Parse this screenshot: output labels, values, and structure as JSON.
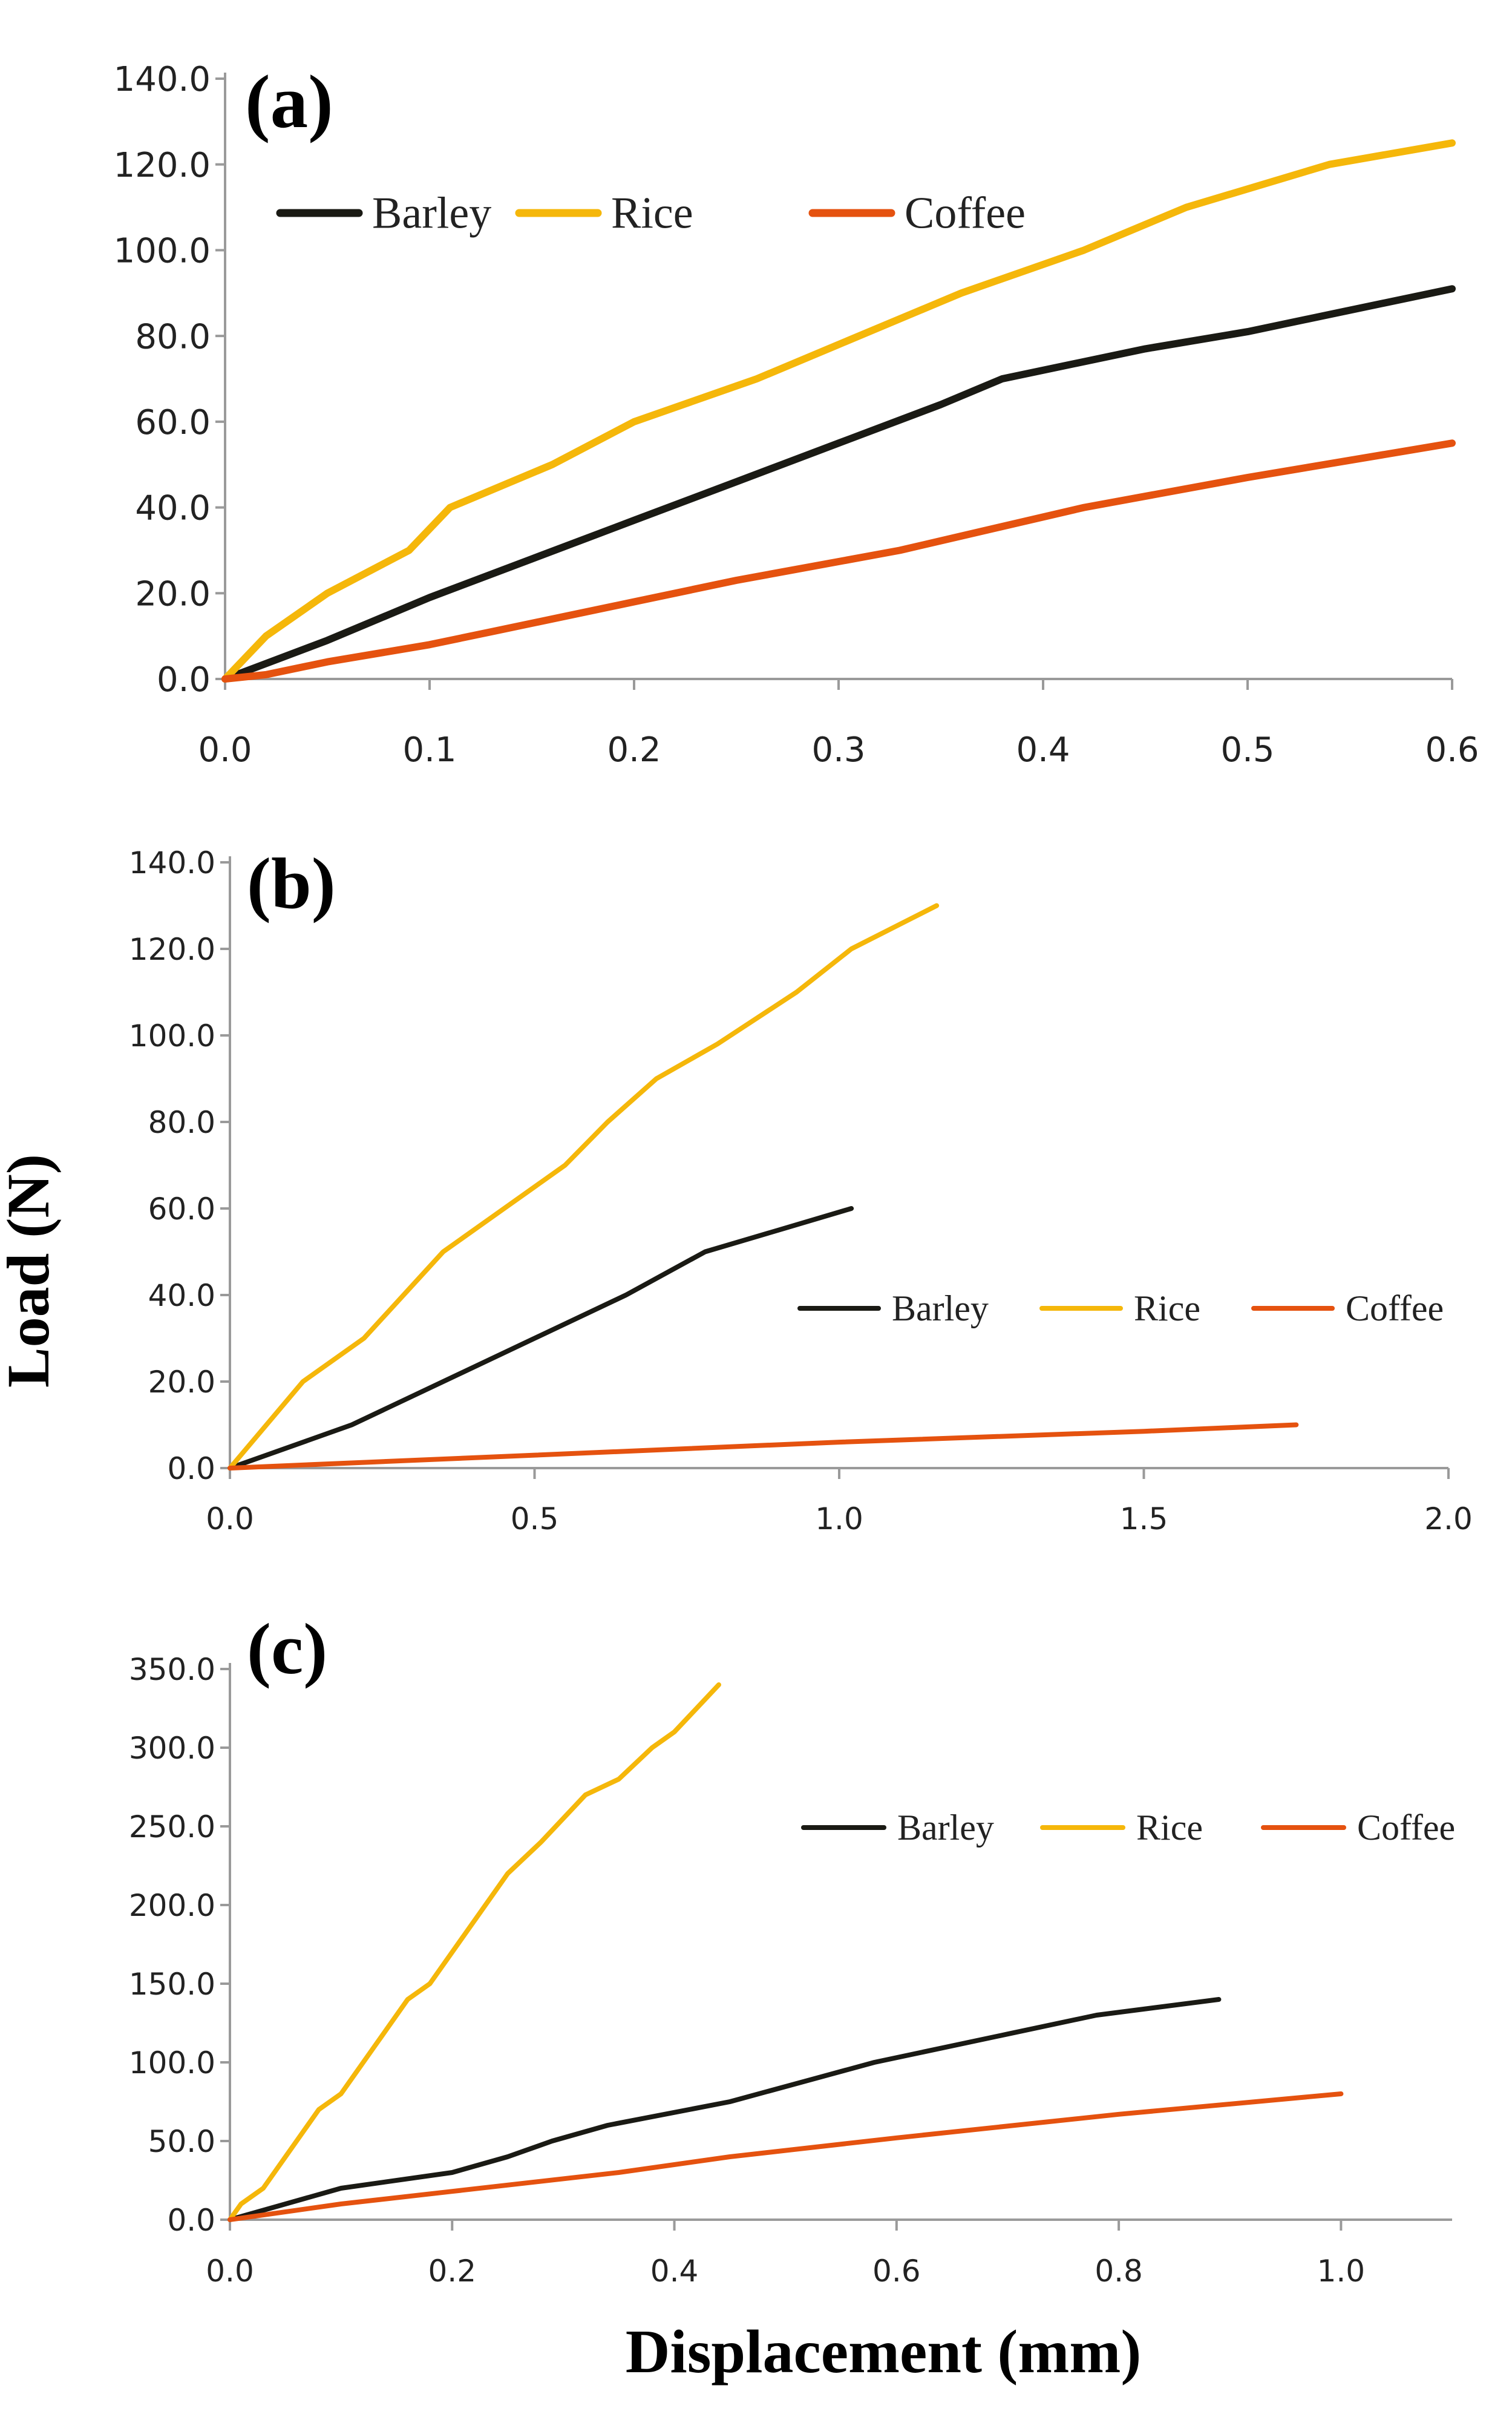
{
  "figure": {
    "ylabel": "Load (N)",
    "xlabel": "Displacement (mm)"
  },
  "colors": {
    "Barley": "#1a1a14",
    "Rice": "#f5b70a",
    "Coffee": "#e5520f"
  },
  "chart_data": [
    {
      "type": "line",
      "panel": "(a)",
      "xlim": [
        0,
        0.6
      ],
      "ylim": [
        0,
        140
      ],
      "x_ticks": [
        0,
        0.1,
        0.2,
        0.3,
        0.4,
        0.5,
        0.6
      ],
      "x_tick_labels": [
        "0.0",
        "0.1",
        "0.2",
        "0.3",
        "0.4",
        "0.5",
        "0.6"
      ],
      "y_ticks": [
        0,
        20,
        40,
        60,
        80,
        100,
        120,
        140
      ],
      "y_tick_labels": [
        "0.0",
        "20.0",
        "40.0",
        "60.0",
        "80.0",
        "100.0",
        "120.0",
        "140.0"
      ],
      "legend": "top-left",
      "grid": false,
      "series": [
        {
          "name": "Barley",
          "x": [
            0,
            0.05,
            0.1,
            0.15,
            0.2,
            0.25,
            0.3,
            0.35,
            0.38,
            0.45,
            0.5,
            0.55,
            0.6
          ],
          "y": [
            0,
            9,
            19,
            28,
            37,
            46,
            55,
            64,
            70,
            77,
            81,
            86,
            91
          ]
        },
        {
          "name": "Rice",
          "x": [
            0,
            0.02,
            0.05,
            0.09,
            0.11,
            0.16,
            0.2,
            0.26,
            0.3,
            0.36,
            0.42,
            0.47,
            0.54,
            0.6
          ],
          "y": [
            0,
            10,
            20,
            30,
            40,
            50,
            60,
            70,
            78,
            90,
            100,
            110,
            120,
            125
          ]
        },
        {
          "name": "Coffee",
          "x": [
            0,
            0.02,
            0.05,
            0.1,
            0.13,
            0.2,
            0.25,
            0.33,
            0.42,
            0.5,
            0.6
          ],
          "y": [
            0,
            1,
            4,
            8,
            11,
            18,
            23,
            30,
            40,
            47,
            55
          ]
        }
      ]
    },
    {
      "type": "line",
      "panel": "(b)",
      "xlim": [
        0,
        2.0
      ],
      "ylim": [
        0,
        140
      ],
      "x_ticks": [
        0,
        0.5,
        1.0,
        1.5,
        2.0
      ],
      "x_tick_labels": [
        "0.0",
        "0.5",
        "1.0",
        "1.5",
        "2.0"
      ],
      "y_ticks": [
        0,
        20,
        40,
        60,
        80,
        100,
        120,
        140
      ],
      "y_tick_labels": [
        "0.0",
        "20.0",
        "40.0",
        "60.0",
        "80.0",
        "100.0",
        "120.0",
        "140.0"
      ],
      "legend": "center-right",
      "grid": false,
      "series": [
        {
          "name": "Barley",
          "x": [
            0,
            0.2,
            0.35,
            0.5,
            0.65,
            0.78,
            0.9,
            1.02
          ],
          "y": [
            0,
            10,
            20,
            30,
            40,
            50,
            55,
            60
          ]
        },
        {
          "name": "Rice",
          "x": [
            0,
            0.12,
            0.22,
            0.35,
            0.45,
            0.55,
            0.62,
            0.7,
            0.8,
            0.93,
            1.02,
            1.16
          ],
          "y": [
            0,
            20,
            30,
            50,
            60,
            70,
            80,
            90,
            98,
            110,
            120,
            130
          ]
        },
        {
          "name": "Coffee",
          "x": [
            0,
            0.5,
            1.0,
            1.5,
            1.75
          ],
          "y": [
            0,
            3,
            6,
            8.5,
            10
          ]
        }
      ]
    },
    {
      "type": "line",
      "panel": "(c)",
      "xlim": [
        0,
        1.1
      ],
      "ylim": [
        0,
        350
      ],
      "x_ticks": [
        0,
        0.2,
        0.4,
        0.6,
        0.8,
        1.0
      ],
      "x_tick_labels": [
        "0.0",
        "0.2",
        "0.4",
        "0.6",
        "0.8",
        "1.0"
      ],
      "y_ticks": [
        0,
        50,
        100,
        150,
        200,
        250,
        300,
        350
      ],
      "y_tick_labels": [
        "0.0",
        "50.0",
        "100.0",
        "150.0",
        "200.0",
        "250.0",
        "300.0",
        "350.0"
      ],
      "legend": "top-right",
      "grid": false,
      "series": [
        {
          "name": "Barley",
          "x": [
            0,
            0.05,
            0.1,
            0.2,
            0.25,
            0.29,
            0.34,
            0.45,
            0.58,
            0.7,
            0.78,
            0.89
          ],
          "y": [
            0,
            10,
            20,
            30,
            40,
            50,
            60,
            75,
            100,
            118,
            130,
            140
          ]
        },
        {
          "name": "Rice",
          "x": [
            0,
            0.01,
            0.03,
            0.06,
            0.08,
            0.1,
            0.13,
            0.16,
            0.18,
            0.22,
            0.25,
            0.28,
            0.32,
            0.35,
            0.38,
            0.4,
            0.42,
            0.44
          ],
          "y": [
            0,
            10,
            20,
            50,
            70,
            80,
            110,
            140,
            150,
            190,
            220,
            240,
            270,
            280,
            300,
            310,
            325,
            340
          ]
        },
        {
          "name": "Coffee",
          "x": [
            0,
            0.1,
            0.2,
            0.35,
            0.45,
            0.6,
            0.8,
            1.0
          ],
          "y": [
            0,
            10,
            18,
            30,
            40,
            52,
            67,
            80
          ]
        }
      ]
    }
  ]
}
